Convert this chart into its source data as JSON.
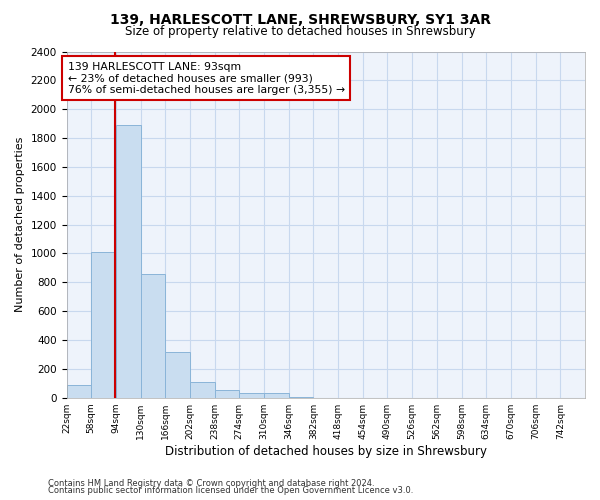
{
  "title": "139, HARLESCOTT LANE, SHREWSBURY, SY1 3AR",
  "subtitle": "Size of property relative to detached houses in Shrewsbury",
  "xlabel": "Distribution of detached houses by size in Shrewsbury",
  "ylabel": "Number of detached properties",
  "bin_edges": [
    22,
    58,
    94,
    130,
    166,
    202,
    238,
    274,
    310,
    346,
    382,
    418,
    454,
    490,
    526,
    562,
    598,
    634,
    670,
    706,
    742
  ],
  "bar_heights": [
    90,
    1010,
    1890,
    860,
    320,
    110,
    50,
    35,
    30,
    5,
    0,
    0,
    0,
    0,
    0,
    0,
    0,
    0,
    0,
    0
  ],
  "bar_color": "#c9ddf0",
  "bar_edgecolor": "#8ab4d8",
  "property_line_x": 93,
  "property_label": "139 HARLESCOTT LANE: 93sqm",
  "annotation_line1": "← 23% of detached houses are smaller (993)",
  "annotation_line2": "76% of semi-detached houses are larger (3,355) →",
  "annotation_box_color": "#cc0000",
  "annotation_bg": "#ffffff",
  "property_line_color": "#cc0000",
  "ylim": [
    0,
    2400
  ],
  "yticks": [
    0,
    200,
    400,
    600,
    800,
    1000,
    1200,
    1400,
    1600,
    1800,
    2000,
    2200,
    2400
  ],
  "xtick_labels": [
    "22sqm",
    "58sqm",
    "94sqm",
    "130sqm",
    "166sqm",
    "202sqm",
    "238sqm",
    "274sqm",
    "310sqm",
    "346sqm",
    "382sqm",
    "418sqm",
    "454sqm",
    "490sqm",
    "526sqm",
    "562sqm",
    "598sqm",
    "634sqm",
    "670sqm",
    "706sqm",
    "742sqm"
  ],
  "grid_color": "#c8d8ee",
  "bg_color": "#eef3fb",
  "footer1": "Contains HM Land Registry data © Crown copyright and database right 2024.",
  "footer2": "Contains public sector information licensed under the Open Government Licence v3.0."
}
